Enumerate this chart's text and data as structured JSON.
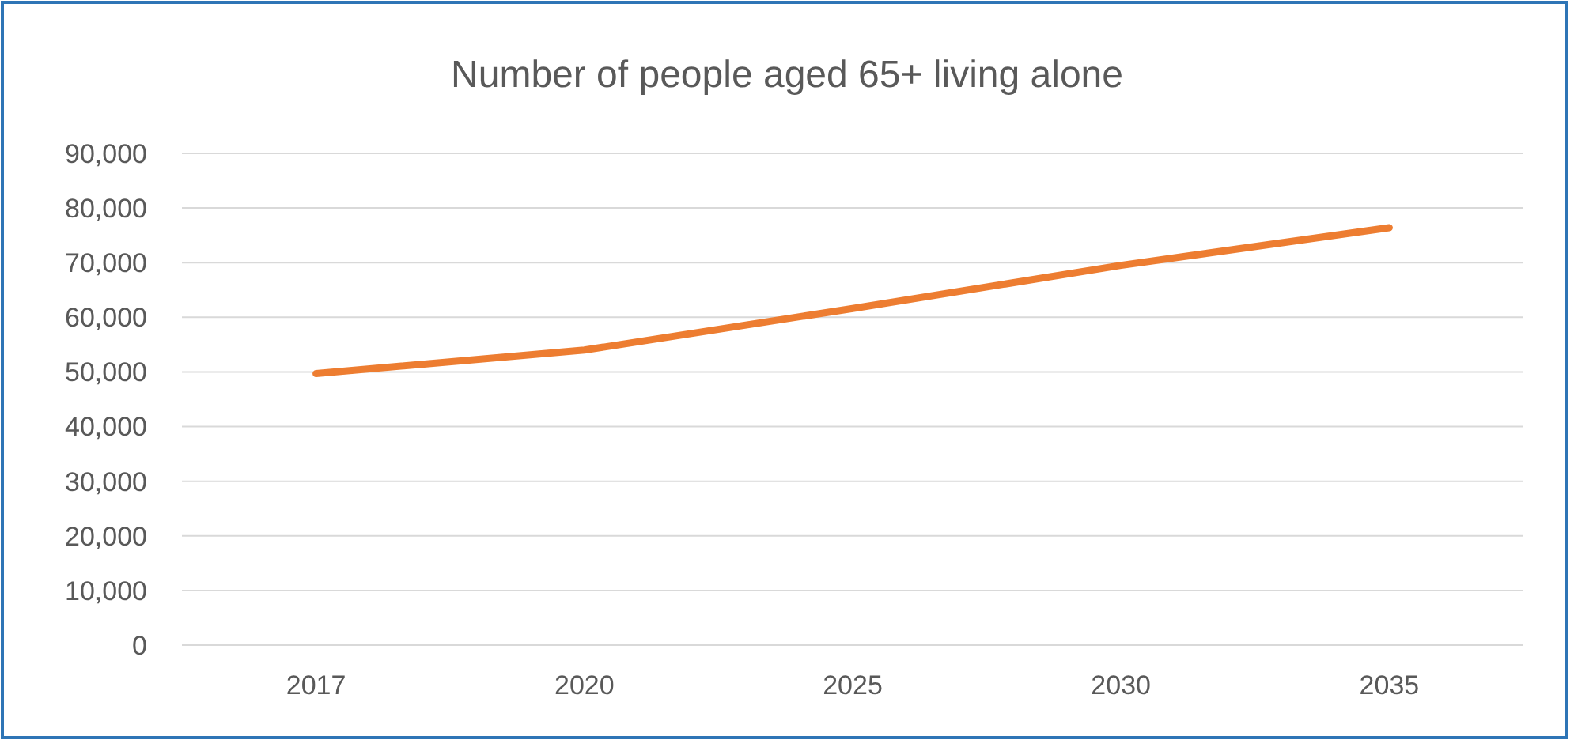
{
  "chart_data": {
    "type": "line",
    "title": "Number of people aged 65+ living alone",
    "categories": [
      "2017",
      "2020",
      "2025",
      "2030",
      "2035"
    ],
    "series": [
      {
        "color": "#ed7d31",
        "values": [
          49700,
          54000,
          61600,
          69500,
          76400
        ]
      }
    ],
    "ylim": [
      0,
      90000
    ],
    "yticks": [
      {
        "value": 0,
        "label": "0"
      },
      {
        "value": 10000,
        "label": "10,000"
      },
      {
        "value": 20000,
        "label": "20,000"
      },
      {
        "value": 30000,
        "label": "30,000"
      },
      {
        "value": 40000,
        "label": "40,000"
      },
      {
        "value": 50000,
        "label": "50,000"
      },
      {
        "value": 60000,
        "label": "60,000"
      },
      {
        "value": 70000,
        "label": "70,000"
      },
      {
        "value": 80000,
        "label": "80,000"
      },
      {
        "value": 90000,
        "label": "90,000"
      }
    ],
    "grid": "y",
    "marker": "none",
    "line_style": "solid"
  }
}
